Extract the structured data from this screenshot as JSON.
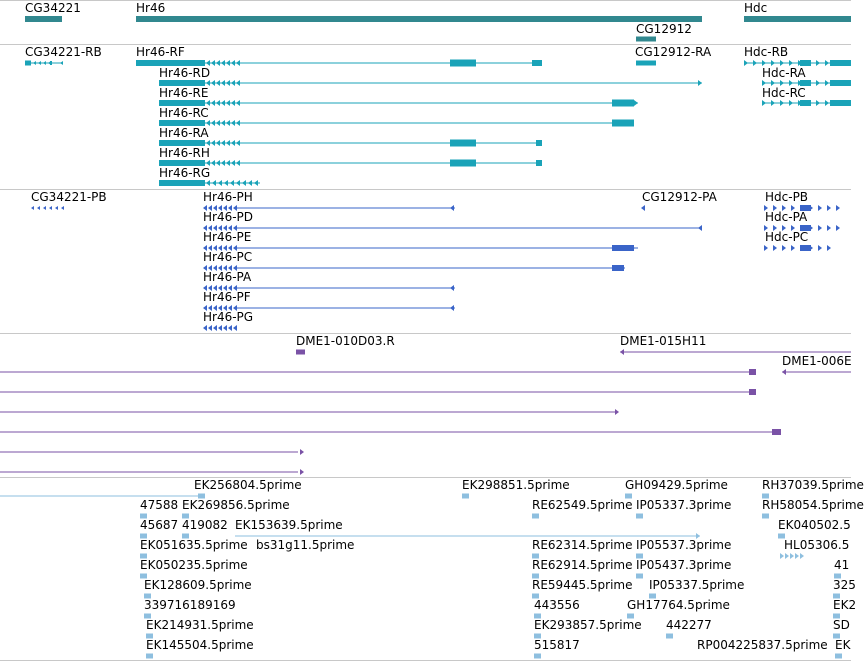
{
  "colors": {
    "gene": "#31888f",
    "flybase_transcript": "#1aa3b8",
    "refseq_transcript": "#3a64c8",
    "genomic_clone": "#7a52a6",
    "est": "#8ebfdf",
    "separator": "#c8c8c8"
  },
  "tracks": {
    "genes": {
      "labels": [
        "CG34221",
        "Hr46",
        "CG12912",
        "Hdc"
      ]
    },
    "flybase_transcripts": {
      "labels": [
        "CG34221-RB",
        "Hr46-RF",
        "Hr46-RD",
        "Hr46-RE",
        "Hr46-RC",
        "Hr46-RA",
        "Hr46-RH",
        "Hr46-RG",
        "CG12912-RA",
        "Hdc-RB",
        "Hdc-RA",
        "Hdc-RC"
      ]
    },
    "refseq_transcripts": {
      "labels": [
        "CG34221-PB",
        "Hr46-PH",
        "Hr46-PD",
        "Hr46-PE",
        "Hr46-PC",
        "Hr46-PA",
        "Hr46-PF",
        "Hr46-PG",
        "CG12912-PA",
        "Hdc-PB",
        "Hdc-PA",
        "Hdc-PC"
      ]
    },
    "genomic_clones": {
      "labels": [
        "DME1-010D03.R",
        "DME1-015H11",
        "DME1-006E"
      ]
    },
    "ests": {
      "labels": [
        "EK256804.5prime",
        "EK298851.5prime",
        "GH09429.5prime",
        "RH37039.5prime",
        "47588",
        "EK269856.5prime",
        "RE62549.5prime",
        "IP05337.3prime",
        "RH58054.5prime",
        "45687",
        "419082",
        "EK153639.5prime",
        "EK040502.5",
        "EK051635.5prime",
        "bs31g11.5prime",
        "RE62314.5prime",
        "IP05537.3prime",
        "HL05306.5",
        "EK050235.5prime",
        "RE62914.5prime",
        "IP05437.3prime",
        "41",
        "EK128609.5prime",
        "RE59445.5prime",
        "IP05337.5prime",
        "325",
        "339716189169",
        "443556",
        "GH17764.5prime",
        "EK2",
        "EK214931.5prime",
        "EK293857.5prime",
        "442277",
        "SD",
        "EK145504.5prime",
        "515817",
        "RP004225837.5prime",
        "EK"
      ]
    }
  }
}
